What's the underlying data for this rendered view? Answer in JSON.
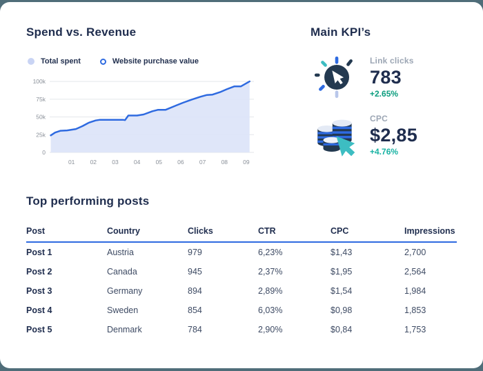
{
  "theme": {
    "frame_color": "#4f6d79",
    "card_color": "#ffffff",
    "accent_blue": "#2e6ae0",
    "area_fill": "#dbe3f8",
    "navy_text": "#1f2d4e",
    "gray_label": "#9ca6b4",
    "grid_color": "#e3e6ea"
  },
  "spend_section": {
    "title": "Spend vs. Revenue",
    "legend": [
      {
        "label": "Total spent",
        "marker": "filled-dot-icon",
        "color": "#c9d4f4"
      },
      {
        "label": "Website purchase value",
        "marker": "ring-icon",
        "color": "#2e6ae0"
      }
    ]
  },
  "chart_data": {
    "type": "area",
    "title": "Spend vs. Revenue",
    "xlabel": "",
    "ylabel": "",
    "x_ticks": [
      "01",
      "02",
      "03",
      "04",
      "05",
      "06",
      "07",
      "08",
      "09"
    ],
    "y_ticks": [
      "0",
      "25k",
      "50k",
      "75k",
      "100k"
    ],
    "y_tick_values_thousands": [
      0,
      25,
      50,
      75,
      100
    ],
    "ylim_thousands": [
      0,
      105
    ],
    "xlim_months": [
      0,
      9.35
    ],
    "grid": true,
    "legend_position": "top-left",
    "line_color": "#2e6ae0",
    "fill_color": "#dbe3f8",
    "series": [
      {
        "name": "Total spent",
        "unit": "thousands",
        "points": [
          [
            0.05,
            24
          ],
          [
            0.25,
            28
          ],
          [
            0.5,
            30.5
          ],
          [
            0.8,
            31
          ],
          [
            1.0,
            32
          ],
          [
            1.2,
            33
          ],
          [
            1.5,
            37
          ],
          [
            1.8,
            42
          ],
          [
            2.1,
            45
          ],
          [
            2.3,
            46
          ],
          [
            3.35,
            46
          ],
          [
            3.45,
            45.5
          ],
          [
            3.6,
            52
          ],
          [
            4.0,
            52
          ],
          [
            4.3,
            53.5
          ],
          [
            4.7,
            58
          ],
          [
            4.95,
            60
          ],
          [
            5.3,
            60
          ],
          [
            5.7,
            65
          ],
          [
            6.1,
            70
          ],
          [
            6.5,
            74.5
          ],
          [
            6.9,
            78.5
          ],
          [
            7.2,
            81
          ],
          [
            7.45,
            81.5
          ],
          [
            7.8,
            85
          ],
          [
            8.1,
            89
          ],
          [
            8.45,
            93
          ],
          [
            8.75,
            93
          ],
          [
            9.15,
            100
          ]
        ]
      }
    ]
  },
  "kpi_section": {
    "title": "Main KPI’s",
    "kpis": [
      {
        "icon": "cursor-click-icon",
        "label": "Link clicks",
        "value": "783",
        "delta": "+2.65%",
        "delta_color": "#0a9c7d"
      },
      {
        "icon": "coins-click-icon",
        "label": "CPC",
        "value": "$2,85",
        "delta": "+4.76%",
        "delta_color": "#18b2a3"
      }
    ]
  },
  "posts_section": {
    "title": "Top performing posts",
    "columns": [
      "Post",
      "Country",
      "Clicks",
      "CTR",
      "CPC",
      "Impressions"
    ],
    "rows": [
      [
        "Post 1",
        "Austria",
        "979",
        "6,23%",
        "$1,43",
        "2,700"
      ],
      [
        "Post 2",
        "Canada",
        "945",
        "2,37%",
        "$1,95",
        "2,564"
      ],
      [
        "Post 3",
        "Germany",
        "894",
        "2,89%",
        "$1,54",
        "1,984"
      ],
      [
        "Post 4",
        "Sweden",
        "854",
        "6,03%",
        "$0,98",
        "1,853"
      ],
      [
        "Post 5",
        "Denmark",
        "784",
        "2,90%",
        "$0,84",
        "1,753"
      ]
    ]
  }
}
